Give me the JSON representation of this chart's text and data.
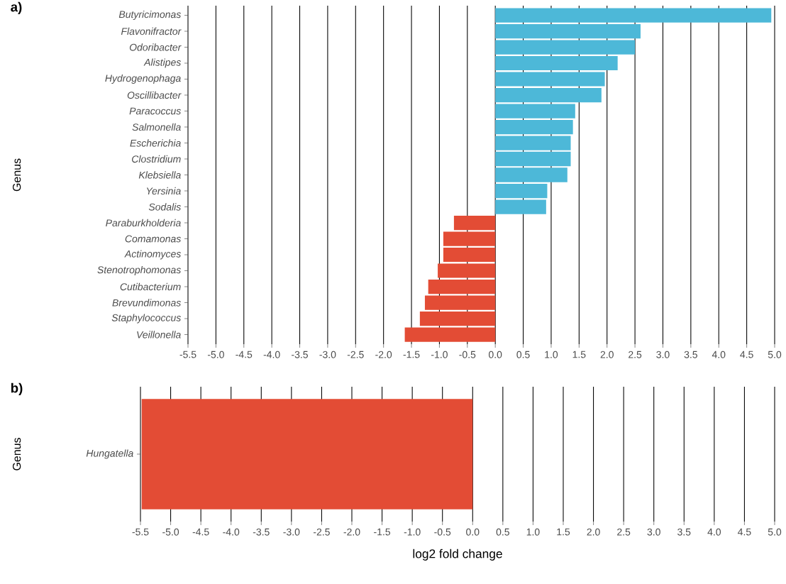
{
  "chart_data": [
    {
      "type": "bar",
      "orientation": "horizontal",
      "title": "a)",
      "ylabel": "Genus",
      "categories": [
        "Butyricimonas",
        "Flavonifractor",
        "Odoribacter",
        "Alistipes",
        "Hydrogenophaga",
        "Oscillibacter",
        "Paracoccus",
        "Salmonella",
        "Escherichia",
        "Clostridium",
        "Klebsiella",
        "Yersinia",
        "Sodalis",
        "Paraburkholderia",
        "Comamonas",
        "Actinomyces",
        "Stenotrophomonas",
        "Cutibacterium",
        "Brevundimonas",
        "Staphylococcus",
        "Veillonella"
      ],
      "values": [
        4.94,
        2.6,
        2.5,
        2.19,
        1.96,
        1.9,
        1.43,
        1.39,
        1.35,
        1.35,
        1.29,
        0.93,
        0.91,
        -0.74,
        -0.93,
        -0.93,
        -1.03,
        -1.2,
        -1.26,
        -1.35,
        -1.62
      ],
      "colors": [
        "#4db8d8",
        "#4db8d8",
        "#4db8d8",
        "#4db8d8",
        "#4db8d8",
        "#4db8d8",
        "#4db8d8",
        "#4db8d8",
        "#4db8d8",
        "#4db8d8",
        "#4db8d8",
        "#4db8d8",
        "#4db8d8",
        "#e34c35",
        "#e34c35",
        "#e34c35",
        "#e34c35",
        "#e34c35",
        "#e34c35",
        "#e34c35",
        "#e34c35"
      ],
      "xlim": [
        -5.5,
        5
      ],
      "xticks": [
        -5.5,
        {
          "value": -5,
          "label": "-5.0"
        },
        -4.5,
        {
          "value": -4,
          "label": "-4.0"
        },
        -3.5,
        {
          "value": -3,
          "label": "-3.0"
        },
        -2.5,
        {
          "value": -2,
          "label": "-2.0"
        },
        -1.5,
        {
          "value": -1,
          "label": "-1.0"
        },
        -0.5,
        {
          "value": 0,
          "label": "0.0"
        },
        0.5,
        {
          "value": 1,
          "label": "1.0"
        },
        1.5,
        {
          "value": 2,
          "label": "2.0"
        },
        2.5,
        {
          "value": 3,
          "label": "3.0"
        },
        3.5,
        {
          "value": 4,
          "label": "4.0"
        },
        4.5,
        {
          "value": 5,
          "label": "5.0"
        }
      ],
      "grid": "x"
    },
    {
      "type": "bar",
      "orientation": "horizontal",
      "title": "b)",
      "ylabel": "Genus",
      "xlabel": "log2 fold change",
      "categories": [
        "Hungatella"
      ],
      "values": [
        -5.48
      ],
      "colors": [
        "#e34c35"
      ],
      "xlim": [
        -5.5,
        5
      ],
      "xticks": [
        -5.5,
        {
          "value": -5,
          "label": "-5.0"
        },
        -4.5,
        {
          "value": -4,
          "label": "-4.0"
        },
        -3.5,
        {
          "value": -3,
          "label": "-3.0"
        },
        -2.5,
        {
          "value": -2,
          "label": "-2.0"
        },
        -1.5,
        {
          "value": -1,
          "label": "-1.0"
        },
        -0.5,
        {
          "value": 0,
          "label": "0.0"
        },
        0.5,
        {
          "value": 1,
          "label": "1.0"
        },
        1.5,
        {
          "value": 2,
          "label": "2.0"
        },
        2.5,
        {
          "value": 3,
          "label": "3.0"
        },
        3.5,
        {
          "value": 4,
          "label": "4.0"
        },
        4.5,
        {
          "value": 5,
          "label": "5.0"
        }
      ],
      "grid": "x"
    }
  ]
}
